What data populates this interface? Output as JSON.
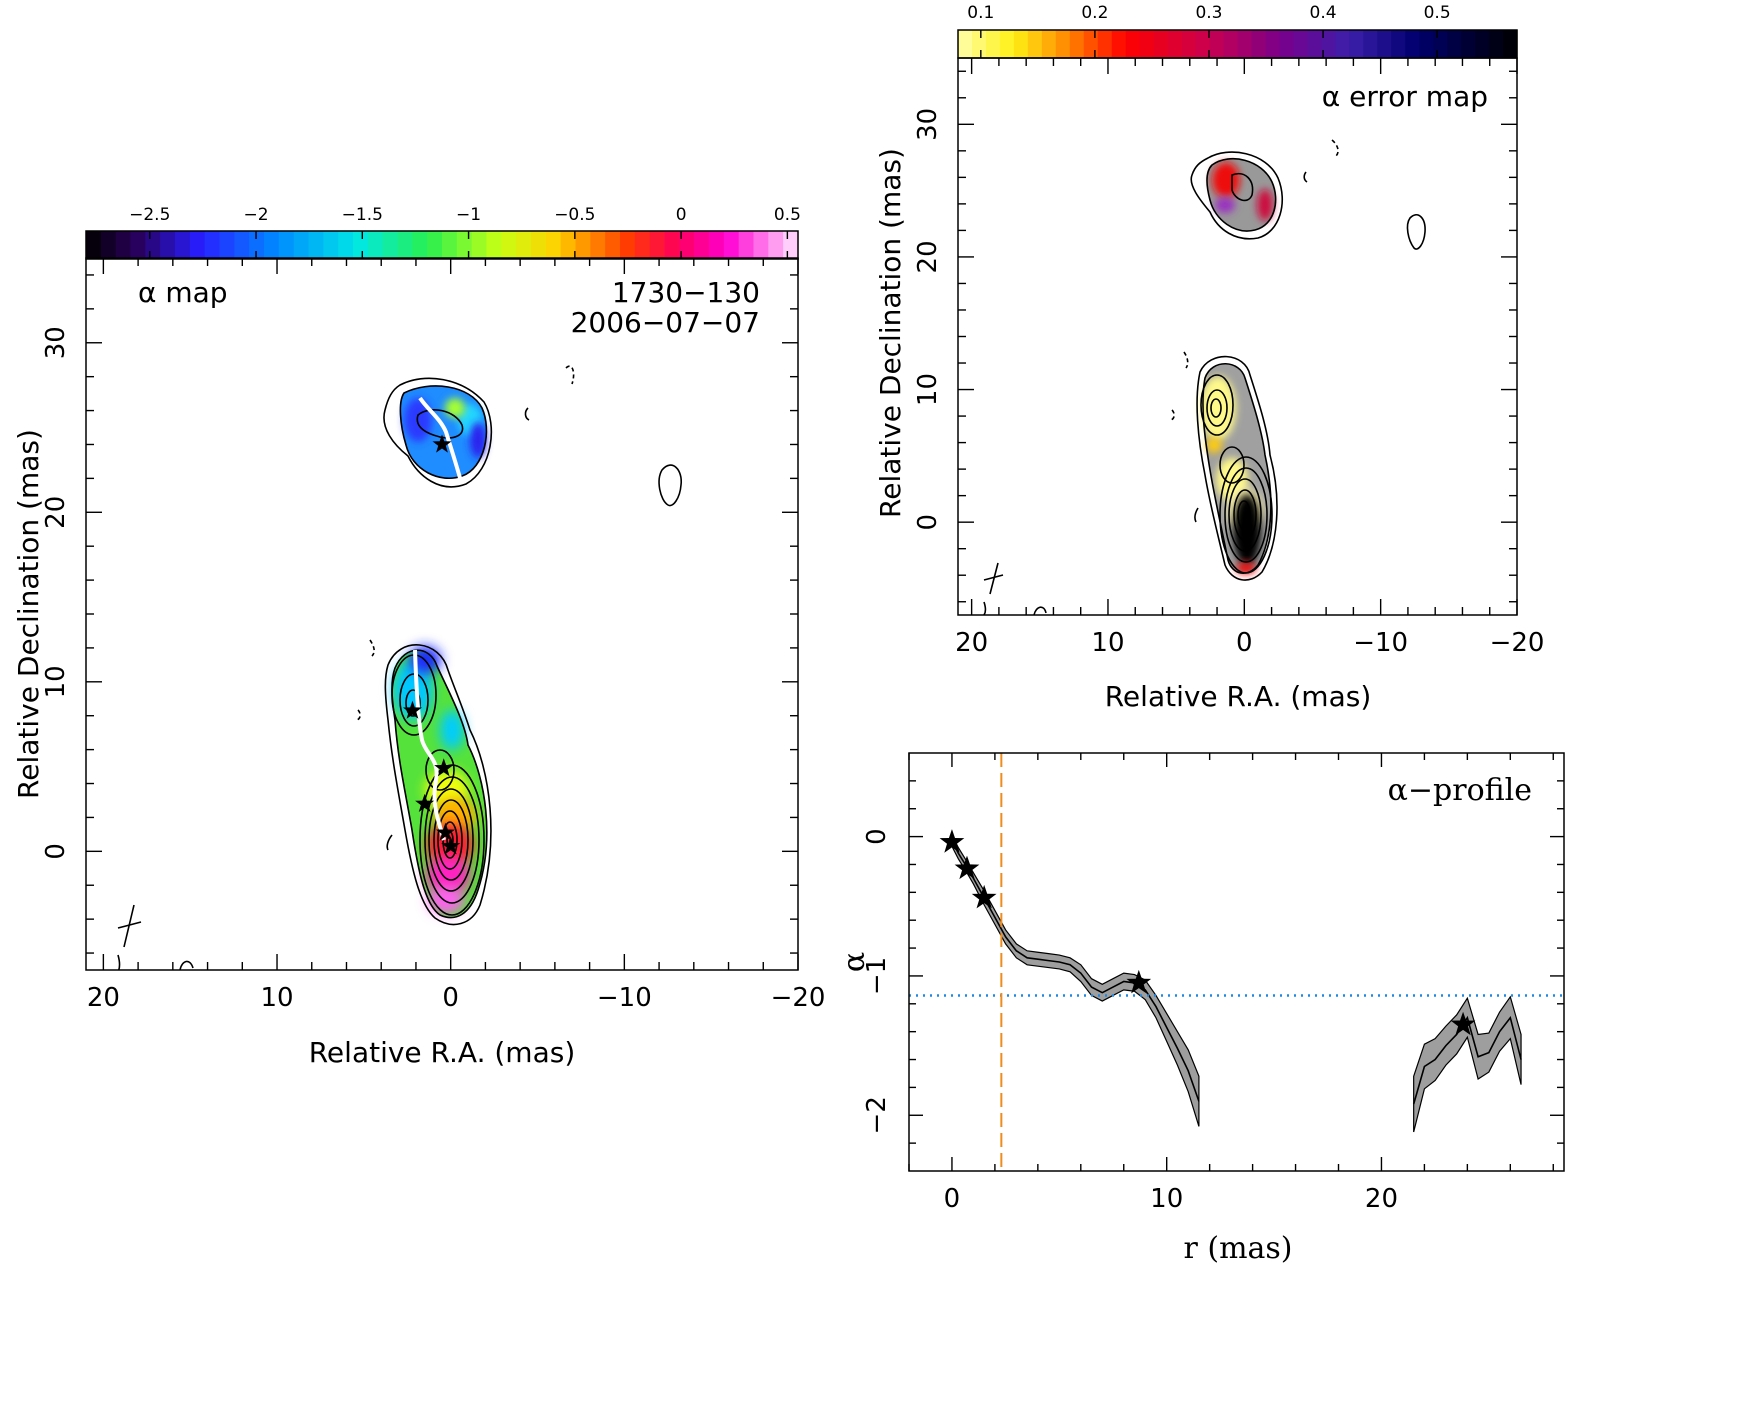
{
  "panels": {
    "alpha_map": {
      "label": "α map",
      "source": "1730−130",
      "date": "2006−07−07",
      "xlabel": "Relative R.A. (mas)",
      "ylabel": "Relative Declination (mas)",
      "x_ticks": [
        "20",
        "10",
        "0",
        "−10",
        "−20"
      ],
      "y_ticks": [
        "0",
        "10",
        "20",
        "30"
      ],
      "colorbar_ticks": [
        "−2.5",
        "−2",
        "−1.5",
        "−1",
        "−0.5",
        "0",
        "0.5"
      ]
    },
    "error_map": {
      "label": "α error map",
      "xlabel": "Relative R.A. (mas)",
      "ylabel": "Relative Declination (mas)",
      "x_ticks": [
        "20",
        "10",
        "0",
        "−10",
        "−20"
      ],
      "y_ticks": [
        "0",
        "10",
        "20",
        "30"
      ],
      "colorbar_ticks": [
        "0.1",
        "0.2",
        "0.3",
        "0.4",
        "0.5"
      ]
    },
    "profile": {
      "label": "α−profile",
      "xlabel": "r (mas)",
      "ylabel": "α",
      "x_ticks": [
        "0",
        "10",
        "20"
      ],
      "y_ticks": [
        "0",
        "−1",
        "−2"
      ]
    }
  },
  "chart_data": [
    {
      "type": "heatmap",
      "panel": "alpha_map",
      "xlim": [
        21,
        -20
      ],
      "ylim": [
        -7,
        35
      ],
      "colorbar_range": [
        -2.8,
        0.55
      ],
      "stars": [
        [
          0.5,
          24
        ],
        [
          2.2,
          8.3
        ],
        [
          0.4,
          4.9
        ],
        [
          1.5,
          2.8
        ],
        [
          0.3,
          1.1
        ],
        [
          0,
          0.3
        ]
      ]
    },
    {
      "type": "heatmap",
      "panel": "error_map",
      "xlim": [
        21,
        -20
      ],
      "ylim": [
        -7,
        35
      ],
      "colorbar_range": [
        0.08,
        0.57
      ]
    },
    {
      "type": "line",
      "panel": "profile",
      "xlim": [
        -2,
        28.5
      ],
      "ylim": [
        -2.4,
        0.6
      ],
      "threshold_alpha": -1.14,
      "vline_r": 2.3,
      "series": [
        {
          "segment": "inner",
          "x": [
            0,
            0.3,
            0.7,
            1.0,
            1.5,
            2.0,
            2.5,
            3.0,
            3.5,
            4.0,
            4.5,
            5.0,
            5.5,
            6.0,
            6.5,
            7.0,
            7.5,
            8.0,
            8.5,
            9.0,
            9.5,
            10.0,
            10.5,
            11.0,
            11.5
          ],
          "values": [
            -0.03,
            -0.12,
            -0.22,
            -0.3,
            -0.44,
            -0.58,
            -0.72,
            -0.82,
            -0.87,
            -0.88,
            -0.89,
            -0.9,
            -0.92,
            -0.98,
            -1.08,
            -1.12,
            -1.08,
            -1.04,
            -1.05,
            -1.1,
            -1.22,
            -1.37,
            -1.52,
            -1.68,
            -1.9
          ],
          "error": [
            0.04,
            0.04,
            0.04,
            0.04,
            0.05,
            0.05,
            0.05,
            0.05,
            0.05,
            0.05,
            0.05,
            0.05,
            0.05,
            0.06,
            0.06,
            0.06,
            0.06,
            0.06,
            0.06,
            0.07,
            0.08,
            0.1,
            0.12,
            0.15,
            0.18
          ]
        },
        {
          "segment": "outer",
          "x": [
            21.5,
            22.0,
            22.5,
            23.0,
            23.5,
            24.0,
            24.5,
            25.0,
            25.5,
            26.0,
            26.5
          ],
          "values": [
            -1.92,
            -1.65,
            -1.6,
            -1.5,
            -1.42,
            -1.3,
            -1.58,
            -1.55,
            -1.4,
            -1.3,
            -1.6
          ],
          "error": [
            0.2,
            0.16,
            0.15,
            0.14,
            0.14,
            0.14,
            0.16,
            0.14,
            0.14,
            0.15,
            0.18
          ]
        }
      ],
      "stars": [
        [
          0,
          -0.04
        ],
        [
          0.7,
          -0.23
        ],
        [
          1.5,
          -0.44
        ],
        [
          8.7,
          -1.05
        ],
        [
          23.8,
          -1.35
        ]
      ]
    }
  ]
}
